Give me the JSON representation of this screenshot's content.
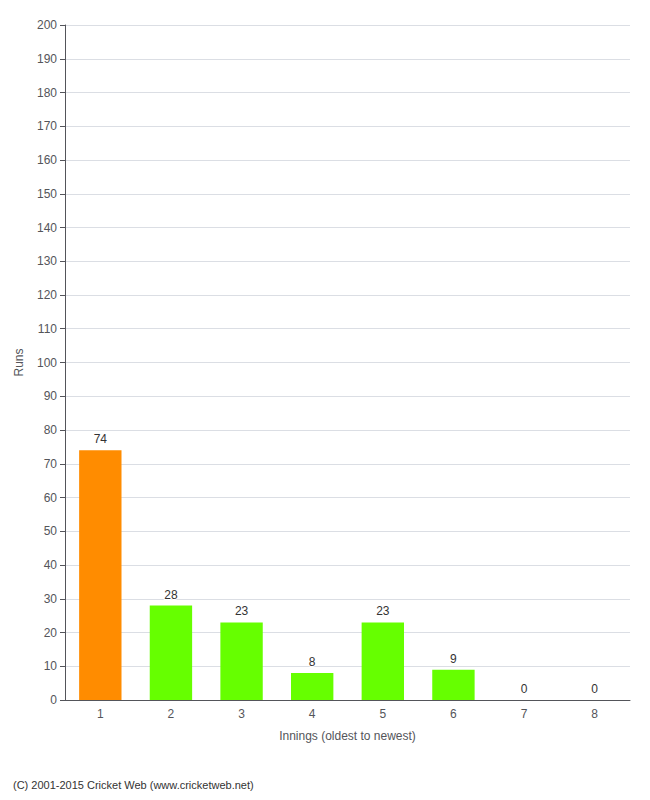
{
  "chart_data": {
    "type": "bar",
    "xlabel": "Innings (oldest to newest)",
    "ylabel": "Runs",
    "categories": [
      "1",
      "2",
      "3",
      "4",
      "5",
      "6",
      "7",
      "8"
    ],
    "values": [
      74,
      28,
      23,
      8,
      23,
      9,
      0,
      0
    ],
    "colors": [
      "#ff8c00",
      "#66ff00",
      "#66ff00",
      "#66ff00",
      "#66ff00",
      "#66ff00",
      "#66ff00",
      "#66ff00"
    ],
    "ylim": [
      0,
      200
    ],
    "yticks": [
      0,
      10,
      20,
      30,
      40,
      50,
      60,
      70,
      80,
      90,
      100,
      110,
      120,
      130,
      140,
      150,
      160,
      170,
      180,
      190,
      200
    ],
    "grid": true,
    "data_labels": true,
    "annotation": "(C) 2001-2015 Cricket Web (www.cricketweb.net)"
  }
}
